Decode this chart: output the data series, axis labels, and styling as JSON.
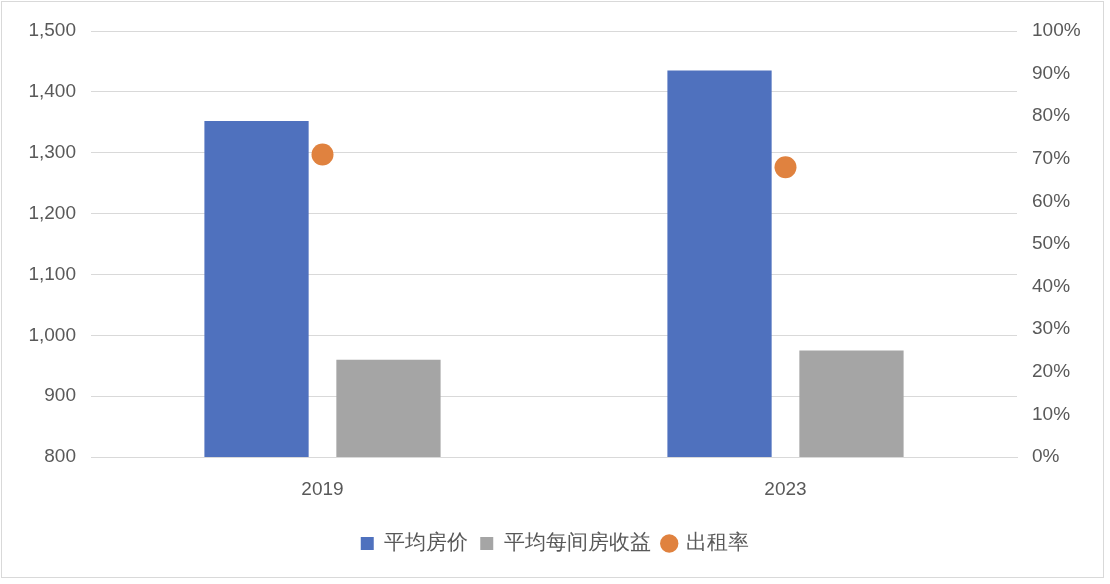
{
  "chart_data": {
    "type": "bar",
    "categories": [
      "2019",
      "2023"
    ],
    "series": [
      {
        "name": "平均房价",
        "color": "#4f71be",
        "values": [
          1352,
          1435
        ]
      },
      {
        "name": "平均每间房收益",
        "color": "#a5a5a5",
        "values": [
          960,
          975
        ]
      },
      {
        "name": "出租率",
        "type": "scatter",
        "axis": "y2",
        "color": "#e0823f",
        "values": [
          71,
          68
        ]
      }
    ],
    "ylim": [
      800,
      1500
    ],
    "yticks": [
      800,
      900,
      {
        "value": 1000,
        "label": "1,000"
      },
      {
        "value": 1100,
        "label": "1,100"
      },
      {
        "value": 1200,
        "label": "1,200"
      },
      {
        "value": 1300,
        "label": "1,300"
      },
      {
        "value": 1400,
        "label": "1,400"
      },
      {
        "value": 1500,
        "label": "1,500"
      }
    ],
    "y2lim": [
      0,
      100
    ],
    "y2ticks": [
      {
        "value": 0,
        "label": "0%"
      },
      {
        "value": 10,
        "label": "10%"
      },
      {
        "value": 20,
        "label": "20%"
      },
      {
        "value": 30,
        "label": "30%"
      },
      {
        "value": 40,
        "label": "40%"
      },
      {
        "value": 50,
        "label": "50%"
      },
      {
        "value": 60,
        "label": "60%"
      },
      {
        "value": 70,
        "label": "70%"
      },
      {
        "value": 80,
        "label": "80%"
      },
      {
        "value": 90,
        "label": "90%"
      },
      {
        "value": 100,
        "label": "100%"
      }
    ],
    "grid": "y",
    "legend": "bottom",
    "marker": "circle"
  }
}
